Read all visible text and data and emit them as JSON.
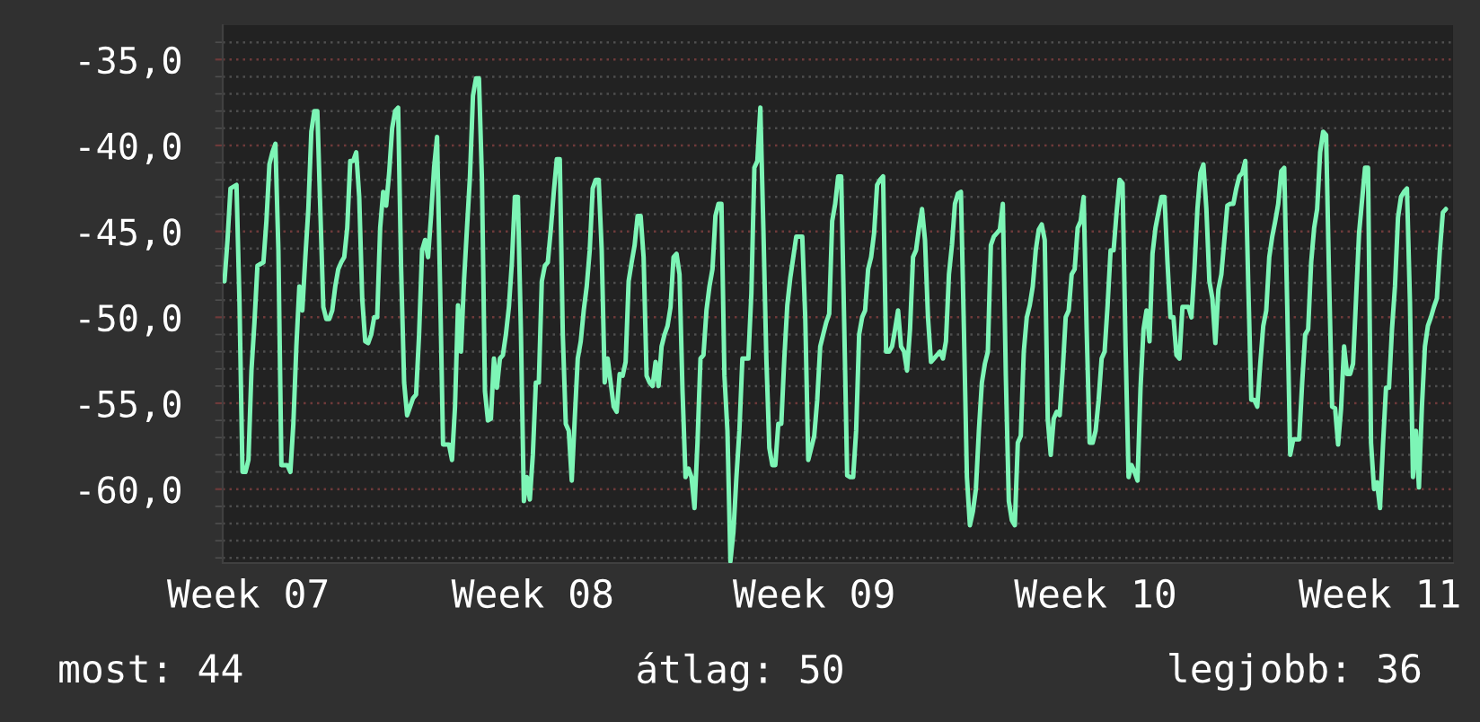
{
  "chart_data": {
    "type": "line",
    "color": "#7df5b6",
    "grid": "y",
    "ylim": [
      -64.3,
      -33.0
    ],
    "yticks": [
      {
        "value": -35,
        "label": "-35,0"
      },
      {
        "value": -40,
        "label": "-40,0"
      },
      {
        "value": -45,
        "label": "-45,0"
      },
      {
        "value": -50,
        "label": "-50,0"
      },
      {
        "value": -55,
        "label": "-55,0"
      },
      {
        "value": -60,
        "label": "-60,0"
      },
      {
        "value": -34,
        "label": null
      },
      {
        "value": -36,
        "label": null
      },
      {
        "value": -37,
        "label": null
      },
      {
        "value": -38,
        "label": null
      },
      {
        "value": -39,
        "label": null
      },
      {
        "value": -41,
        "label": null
      },
      {
        "value": -42,
        "label": null
      },
      {
        "value": -43,
        "label": null
      },
      {
        "value": -44,
        "label": null
      },
      {
        "value": -46,
        "label": null
      },
      {
        "value": -47,
        "label": null
      },
      {
        "value": -48,
        "label": null
      },
      {
        "value": -49,
        "label": null
      },
      {
        "value": -51,
        "label": null
      },
      {
        "value": -52,
        "label": null
      },
      {
        "value": -53,
        "label": null
      },
      {
        "value": -54,
        "label": null
      },
      {
        "value": -56,
        "label": null
      },
      {
        "value": -57,
        "label": null
      },
      {
        "value": -58,
        "label": null
      },
      {
        "value": -59,
        "label": null
      },
      {
        "value": -61,
        "label": null
      },
      {
        "value": -62,
        "label": null
      },
      {
        "value": -63,
        "label": null
      },
      {
        "value": -64,
        "label": null
      }
    ],
    "annotations": [
      "most: 44",
      "átlag: 50",
      "legjobb: 36"
    ],
    "categories": [
      null,
      null,
      null,
      null,
      null,
      null,
      null,
      null,
      "Week 07",
      null,
      null,
      null,
      null,
      null,
      null,
      null,
      null,
      null,
      null,
      null,
      null,
      null,
      null,
      null,
      null,
      null,
      null,
      null,
      null,
      null,
      null,
      null,
      null,
      null,
      null,
      null,
      null,
      null,
      null,
      null,
      null,
      null,
      null,
      null,
      null,
      null,
      null,
      null,
      null,
      null,
      null,
      null,
      null,
      null,
      null,
      null,
      null,
      null,
      null,
      null,
      null,
      null,
      null,
      null,
      null,
      null,
      null,
      null,
      null,
      null,
      null,
      null,
      null,
      null,
      null,
      null,
      null,
      null,
      null,
      null,
      null,
      null,
      null,
      null,
      null,
      null,
      null,
      null,
      null,
      null,
      null,
      null,
      null,
      null,
      null,
      null,
      null,
      null,
      null,
      null,
      null,
      null,
      null,
      "Week 08",
      null,
      null,
      null,
      null,
      null,
      null,
      null,
      null,
      null,
      null,
      null,
      null,
      null,
      null,
      null,
      null,
      null,
      null,
      null,
      null,
      null,
      null,
      null,
      null,
      null,
      null,
      null,
      null,
      null,
      null,
      null,
      null,
      null,
      null,
      null,
      null,
      null,
      null,
      null,
      null,
      null,
      null,
      null,
      null,
      null,
      null,
      null,
      null,
      null,
      null,
      null,
      null,
      null,
      null,
      null,
      null,
      null,
      null,
      null,
      null,
      null,
      null,
      null,
      null,
      null,
      null,
      null,
      null,
      null,
      null,
      null,
      null,
      null,
      null,
      null,
      null,
      null,
      null,
      null,
      null,
      null,
      null,
      null,
      null,
      null,
      null,
      null,
      null,
      null,
      null,
      null,
      null,
      null,
      "Week 09",
      null,
      null,
      null,
      null,
      null,
      null,
      null,
      null,
      null,
      null,
      null,
      null,
      null,
      null,
      null,
      null,
      null,
      null,
      null,
      null,
      null,
      null,
      null,
      null,
      null,
      null,
      null,
      null,
      null,
      null,
      null,
      null,
      null,
      null,
      null,
      null,
      null,
      null,
      null,
      null,
      null,
      null,
      null,
      null,
      null,
      null,
      null,
      null,
      null,
      null,
      null,
      null,
      null,
      null,
      null,
      null,
      null,
      null,
      null,
      null,
      null,
      null,
      null,
      null,
      null,
      null,
      null,
      null,
      null,
      null,
      null,
      null,
      null,
      null,
      null,
      null,
      null,
      null,
      null,
      null,
      null,
      null,
      null,
      null,
      null,
      null,
      null,
      null,
      null,
      null,
      null,
      null,
      null,
      "Week 10",
      null,
      null,
      null,
      null,
      null,
      null,
      null,
      null,
      null,
      null,
      null,
      null,
      null,
      null,
      null,
      null,
      null,
      null,
      null,
      null,
      null,
      null,
      null,
      null,
      null,
      null,
      null,
      null,
      null,
      null,
      null,
      null,
      null,
      null,
      null,
      null,
      null,
      null,
      null,
      null,
      null,
      null,
      null,
      null,
      null,
      null,
      null,
      null,
      null,
      null,
      null,
      null,
      null,
      null,
      null,
      null,
      null,
      null,
      null,
      null,
      null,
      null,
      null,
      null,
      null,
      null,
      null,
      null,
      null,
      null,
      null,
      null,
      null,
      null,
      null,
      null,
      null,
      null,
      null,
      null,
      null,
      null,
      null,
      null,
      null,
      null,
      null,
      null,
      null,
      null,
      null,
      null,
      null,
      null,
      "Week 11",
      null,
      null,
      null,
      null,
      null,
      null,
      null,
      null,
      null,
      null,
      null,
      null,
      null,
      null,
      null,
      null,
      null,
      null,
      null,
      null,
      null,
      null
    ],
    "values": [
      -47.9,
      -45.5,
      -42.5,
      -42.4,
      -42.3,
      -49.1,
      -59.0,
      -59.0,
      -58.3,
      -53.1,
      -50.3,
      -47.0,
      -46.9,
      -46.8,
      -44.4,
      -41.1,
      -40.4,
      -39.9,
      -46.1,
      -58.6,
      -58.6,
      -58.6,
      -59.0,
      -56.2,
      -51.7,
      -48.2,
      -49.6,
      -46.5,
      -43.7,
      -39.2,
      -38.0,
      -38.0,
      -43.7,
      -49.4,
      -50.1,
      -50.1,
      -49.6,
      -48.2,
      -47.2,
      -46.8,
      -46.5,
      -44.8,
      -40.9,
      -40.9,
      -40.4,
      -43.0,
      -48.9,
      -51.4,
      -51.5,
      -51.0,
      -50.0,
      -50.0,
      -44.8,
      -42.7,
      -43.5,
      -41.6,
      -39.0,
      -38.0,
      -37.8,
      -47.2,
      -53.8,
      -55.7,
      -55.2,
      -54.7,
      -54.5,
      -51.0,
      -46.1,
      -45.5,
      -46.5,
      -44.1,
      -41.3,
      -39.5,
      -48.1,
      -57.4,
      -57.4,
      -57.4,
      -58.3,
      -55.2,
      -49.3,
      -52.0,
      -47.9,
      -44.8,
      -41.8,
      -37.1,
      -36.1,
      -36.1,
      -42.0,
      -54.3,
      -56.0,
      -55.9,
      -52.4,
      -54.1,
      -52.4,
      -52.2,
      -51.0,
      -49.4,
      -46.8,
      -43.0,
      -43.0,
      -50.7,
      -60.7,
      -59.3,
      -60.6,
      -58.0,
      -53.8,
      -53.8,
      -47.9,
      -47.0,
      -46.8,
      -44.9,
      -42.7,
      -40.8,
      -40.8,
      -51.0,
      -56.2,
      -56.6,
      -59.5,
      -55.9,
      -52.4,
      -51.4,
      -49.6,
      -48.2,
      -46.1,
      -42.5,
      -42.0,
      -42.0,
      -46.1,
      -53.8,
      -52.4,
      -53.8,
      -55.2,
      -55.5,
      -53.3,
      -53.4,
      -52.6,
      -47.9,
      -46.8,
      -45.8,
      -44.1,
      -44.1,
      -46.5,
      -53.4,
      -53.8,
      -54.0,
      -52.6,
      -54.0,
      -51.7,
      -51.0,
      -50.5,
      -49.4,
      -46.5,
      -46.3,
      -47.5,
      -54.3,
      -59.3,
      -58.8,
      -59.3,
      -61.1,
      -57.3,
      -52.4,
      -52.2,
      -49.6,
      -48.2,
      -47.2,
      -44.1,
      -43.4,
      -43.4,
      -53.4,
      -56.6,
      -64.2,
      -62.5,
      -59.3,
      -56.6,
      -52.4,
      -52.4,
      -52.4,
      -48.6,
      -41.3,
      -40.9,
      -37.8,
      -44.8,
      -52.4,
      -57.6,
      -58.6,
      -58.6,
      -56.2,
      -56.2,
      -52.4,
      -49.3,
      -47.7,
      -46.5,
      -45.3,
      -45.3,
      -45.3,
      -50.0,
      -58.3,
      -57.6,
      -56.9,
      -54.8,
      -51.7,
      -51.0,
      -50.3,
      -49.8,
      -44.4,
      -43.4,
      -41.8,
      -41.8,
      -50.3,
      -59.2,
      -59.3,
      -59.3,
      -56.6,
      -51.0,
      -50.0,
      -49.6,
      -47.2,
      -46.5,
      -45.1,
      -42.3,
      -42.0,
      -41.8,
      -52.0,
      -52.0,
      -51.7,
      -50.7,
      -49.6,
      -51.7,
      -52.0,
      -53.1,
      -50.7,
      -46.5,
      -46.1,
      -44.8,
      -43.7,
      -45.5,
      -50.0,
      -52.6,
      -52.4,
      -52.2,
      -52.0,
      -52.4,
      -51.4,
      -47.5,
      -45.8,
      -43.4,
      -42.8,
      -42.7,
      -50.7,
      -59.3,
      -62.1,
      -61.3,
      -60.0,
      -56.6,
      -53.8,
      -52.7,
      -52.0,
      -45.8,
      -45.3,
      -45.1,
      -44.9,
      -43.4,
      -53.4,
      -60.7,
      -61.8,
      -62.1,
      -57.3,
      -56.9,
      -52.0,
      -50.0,
      -49.3,
      -48.2,
      -46.1,
      -44.9,
      -44.6,
      -45.5,
      -55.9,
      -58.0,
      -55.9,
      -55.5,
      -55.7,
      -53.1,
      -50.0,
      -49.6,
      -47.5,
      -47.2,
      -44.8,
      -44.4,
      -43.0,
      -50.7,
      -57.3,
      -57.3,
      -56.6,
      -54.8,
      -52.4,
      -52.0,
      -49.3,
      -46.1,
      -46.1,
      -43.9,
      -42.0,
      -42.2,
      -51.7,
      -59.3,
      -58.6,
      -59.0,
      -59.5,
      -54.1,
      -50.7,
      -49.6,
      -51.4,
      -46.3,
      -44.8,
      -43.9,
      -43.0,
      -43.0,
      -46.8,
      -50.0,
      -50.0,
      -52.2,
      -52.4,
      -49.4,
      -49.4,
      -49.4,
      -50.0,
      -47.2,
      -43.7,
      -41.6,
      -41.1,
      -43.7,
      -47.9,
      -48.9,
      -51.5,
      -48.4,
      -47.5,
      -45.5,
      -43.5,
      -43.4,
      -43.4,
      -42.5,
      -41.8,
      -41.6,
      -40.9,
      -48.2,
      -54.8,
      -54.8,
      -55.2,
      -52.7,
      -50.5,
      -49.6,
      -46.5,
      -45.3,
      -44.4,
      -43.4,
      -41.5,
      -41.3,
      -49.3,
      -58.0,
      -57.1,
      -57.1,
      -57.1,
      -53.8,
      -51.0,
      -50.7,
      -46.8,
      -44.8,
      -43.7,
      -40.4,
      -39.2,
      -39.4,
      -47.9,
      -55.2,
      -55.3,
      -57.4,
      -55.3,
      -51.7,
      -53.3,
      -53.3,
      -52.7,
      -48.9,
      -45.1,
      -43.2,
      -41.3,
      -41.3,
      -57.3,
      -60.0,
      -59.6,
      -61.1,
      -57.4,
      -54.1,
      -54.1,
      -50.7,
      -48.2,
      -44.2,
      -43.0,
      -42.7,
      -42.5,
      -49.1,
      -59.3,
      -56.6,
      -59.9,
      -55.2,
      -51.7,
      -50.5,
      -50.0,
      -49.4,
      -48.9,
      -46.1,
      -43.9,
      -43.7
    ]
  }
}
